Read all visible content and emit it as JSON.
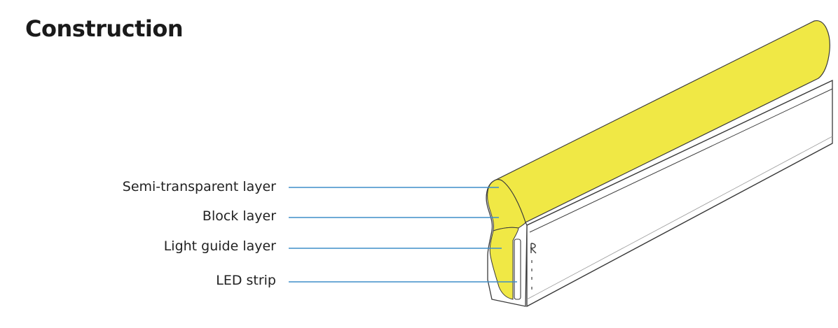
{
  "title": "Construction",
  "labels": [
    "Semi-transparent layer",
    "Block layer",
    "Light guide layer",
    "LED strip"
  ],
  "colors": {
    "semi_transparent_layer": "#F0E845",
    "leader_line": "#3E8EC8",
    "outline": "#3a3a3a",
    "title_text": "#1a1a1a",
    "label_text": "#222222"
  }
}
